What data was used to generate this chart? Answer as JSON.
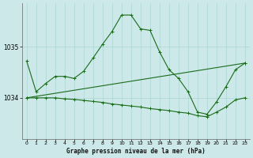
{
  "title": "Graphe pression niveau de la mer (hPa)",
  "background_color": "#cce8e8",
  "grid_color": "#aad4d4",
  "line_color": "#1a6b1a",
  "marker_color": "#1a6b1a",
  "xlim": [
    -0.5,
    23.5
  ],
  "ylim": [
    1033.2,
    1035.85
  ],
  "yticks": [
    1034,
    1035
  ],
  "xticks": [
    0,
    1,
    2,
    3,
    4,
    5,
    6,
    7,
    8,
    9,
    10,
    11,
    12,
    13,
    14,
    15,
    16,
    17,
    18,
    19,
    20,
    21,
    22,
    23
  ],
  "series1_x": [
    0,
    1,
    2,
    3,
    4,
    5,
    6,
    7,
    8,
    9,
    10,
    11,
    12,
    13,
    14,
    15,
    16,
    17,
    18,
    19,
    20,
    21,
    22,
    23
  ],
  "series1_y": [
    1034.72,
    1034.12,
    1034.28,
    1034.42,
    1034.42,
    1034.38,
    1034.52,
    1034.78,
    1035.05,
    1035.3,
    1035.62,
    1035.62,
    1035.35,
    1035.32,
    1034.9,
    1034.55,
    1034.38,
    1034.12,
    1033.72,
    1033.68,
    1033.92,
    1034.22,
    1034.55,
    1034.68
  ],
  "series2_x": [
    0,
    23
  ],
  "series2_y": [
    1034.0,
    1034.68
  ],
  "series3_x": [
    0,
    1,
    2,
    3,
    4,
    5,
    6,
    7,
    8,
    9,
    10,
    11,
    12,
    13,
    14,
    15,
    16,
    17,
    18,
    19,
    20,
    21,
    22,
    23
  ],
  "series3_y": [
    1034.0,
    1034.0,
    1034.0,
    1034.0,
    1033.98,
    1033.97,
    1033.95,
    1033.93,
    1033.91,
    1033.88,
    1033.86,
    1033.84,
    1033.82,
    1033.79,
    1033.77,
    1033.75,
    1033.72,
    1033.7,
    1033.65,
    1033.63,
    1033.72,
    1033.82,
    1033.96,
    1034.0
  ]
}
